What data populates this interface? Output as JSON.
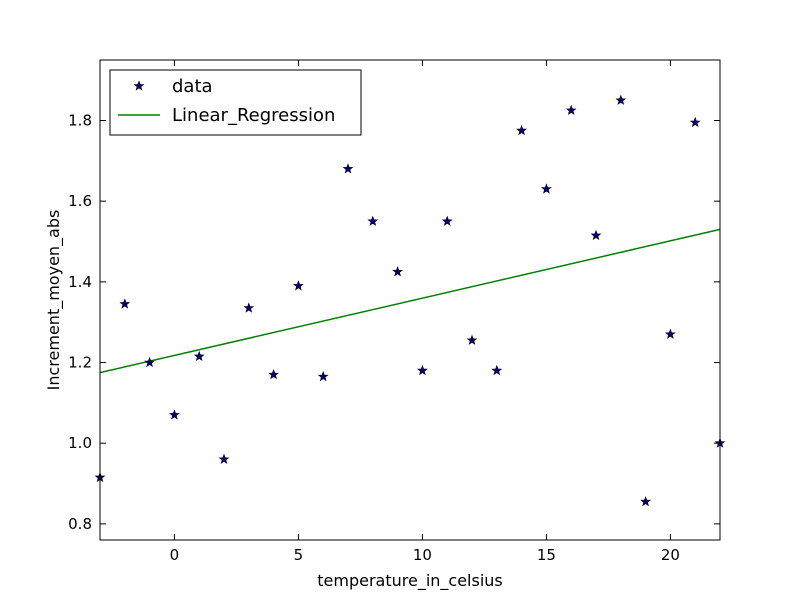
{
  "chart_data": {
    "type": "scatter",
    "xlabel": "temperature_in_celsius",
    "ylabel": "Increment_moyen_abs",
    "xlim": [
      -3,
      22
    ],
    "ylim": [
      0.76,
      1.95
    ],
    "xticks": [
      0,
      5,
      10,
      15,
      20
    ],
    "yticks": [
      0.8,
      1.0,
      1.2,
      1.4,
      1.6,
      1.8
    ],
    "xtick_labels": [
      "0",
      "5",
      "10",
      "15",
      "20"
    ],
    "ytick_labels": [
      "0.8",
      "1.0",
      "1.2",
      "1.4",
      "1.6",
      "1.8"
    ],
    "grid": false,
    "legend_position": "top-left",
    "series": [
      {
        "name": "data",
        "kind": "scatter",
        "marker": "star",
        "color": "#000080",
        "x": [
          -3,
          -2,
          -1,
          0,
          1,
          2,
          3,
          4,
          5,
          6,
          7,
          8,
          9,
          10,
          11,
          12,
          13,
          14,
          15,
          16,
          17,
          18,
          19,
          20,
          21,
          22
        ],
        "y": [
          0.915,
          1.345,
          1.2,
          1.07,
          1.215,
          0.96,
          1.335,
          1.17,
          1.39,
          1.165,
          1.68,
          1.55,
          1.425,
          1.18,
          1.55,
          1.255,
          1.18,
          1.775,
          1.63,
          1.825,
          1.515,
          1.85,
          0.855,
          1.27,
          1.795,
          1.0
        ]
      },
      {
        "name": "Linear_Regression",
        "kind": "line",
        "color": "#008000",
        "x": [
          -3,
          22
        ],
        "y": [
          1.175,
          1.53
        ]
      }
    ]
  }
}
